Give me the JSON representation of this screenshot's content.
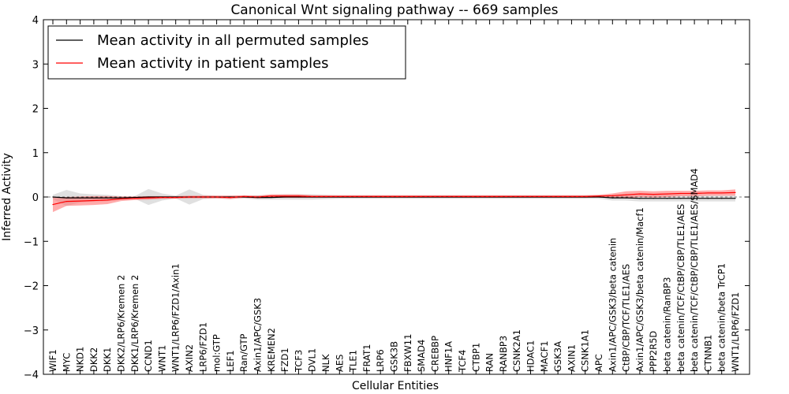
{
  "chart_data": {
    "type": "line",
    "title": "Canonical Wnt signaling pathway -- 669 samples",
    "xlabel": "Cellular Entities",
    "ylabel": "Inferred Activity",
    "ylim": [
      -4,
      4
    ],
    "yticks": [
      -4,
      -3,
      -2,
      -1,
      0,
      1,
      2,
      3,
      4
    ],
    "ytick_labels": [
      "−4",
      "−3",
      "−2",
      "−1",
      "0",
      "1",
      "2",
      "3",
      "4"
    ],
    "legend_position": "top-left",
    "categories": [
      "WIF1",
      "MYC",
      "NKD1",
      "DKK2",
      "DKK1",
      "DKK2/LRP6/Kremen 2",
      "DKK1/LRP6/Kremen 2",
      "CCND1",
      "WNT1",
      "WNT1/LRP6/FZD1/Axin1",
      "AXIN2",
      "LRP6/FZD1",
      "mol:GTP",
      "LEF1",
      "Ran/GTP",
      "Axin1/APC/GSK3",
      "KREMEN2",
      "FZD1",
      "TCF3",
      "DVL1",
      "NLK",
      "AES",
      "TLE1",
      "FRAT1",
      "LRP6",
      "GSK3B",
      "FBXW11",
      "SMAD4",
      "CREBBP",
      "HNF1A",
      "TCF4",
      "CTBP1",
      "RAN",
      "RANBP3",
      "CSNK2A1",
      "HDAC1",
      "MACF1",
      "GSK3A",
      "AXIN1",
      "CSNK1A1",
      "APC",
      "Axin1/APC/GSK3/beta catenin",
      "CtBP/CBP/TCF/TLE1/AES",
      "Axin1/APC/GSK3/beta catenin/Macf1",
      "PPP2R5D",
      "beta catenin/RanBP3",
      "beta catenin/TCF/CtBP/CBP/TLE1/AES",
      "beta catenin/TCF/CtBP/CBP/TLE1/AES/SMAD4",
      "CTNNB1",
      "beta catenin/beta TrCP1",
      "WNT1/LRP6/FZD1"
    ],
    "series": [
      {
        "name": "Mean activity in all permuted samples",
        "color": "#000000",
        "band_color": "#bbbbbb",
        "values": [
          0.0,
          -0.02,
          -0.02,
          -0.02,
          -0.02,
          -0.02,
          -0.01,
          0.0,
          0.0,
          0.0,
          0.0,
          0.0,
          0.0,
          0.0,
          0.0,
          -0.01,
          -0.01,
          0.0,
          0.0,
          0.0,
          0.0,
          0.0,
          0.0,
          0.0,
          0.0,
          0.0,
          0.0,
          0.0,
          0.0,
          0.0,
          0.0,
          0.0,
          0.0,
          0.0,
          0.0,
          0.0,
          0.0,
          0.0,
          0.0,
          0.0,
          0.0,
          -0.02,
          -0.02,
          -0.03,
          -0.03,
          -0.03,
          -0.03,
          -0.03,
          -0.03,
          -0.03,
          -0.03
        ],
        "band_half_width": [
          0.05,
          0.18,
          0.1,
          0.08,
          0.07,
          0.04,
          0.03,
          0.18,
          0.08,
          0.03,
          0.17,
          0.05,
          0.03,
          0.03,
          0.03,
          0.05,
          0.05,
          0.06,
          0.06,
          0.06,
          0.05,
          0.04,
          0.04,
          0.04,
          0.04,
          0.04,
          0.04,
          0.04,
          0.04,
          0.04,
          0.04,
          0.04,
          0.04,
          0.04,
          0.04,
          0.04,
          0.04,
          0.04,
          0.04,
          0.04,
          0.04,
          0.06,
          0.06,
          0.07,
          0.07,
          0.07,
          0.07,
          0.07,
          0.07,
          0.07,
          0.07
        ]
      },
      {
        "name": "Mean activity in patient samples",
        "color": "#ff0000",
        "band_color": "#ff6666",
        "values": [
          -0.17,
          -0.1,
          -0.09,
          -0.08,
          -0.07,
          -0.04,
          -0.03,
          -0.02,
          -0.01,
          -0.01,
          0.0,
          0.0,
          0.0,
          -0.01,
          0.01,
          0.0,
          0.02,
          0.02,
          0.02,
          0.01,
          0.01,
          0.01,
          0.01,
          0.01,
          0.01,
          0.01,
          0.01,
          0.01,
          0.01,
          0.01,
          0.01,
          0.01,
          0.01,
          0.01,
          0.01,
          0.01,
          0.01,
          0.01,
          0.01,
          0.01,
          0.02,
          0.03,
          0.05,
          0.07,
          0.06,
          0.07,
          0.08,
          0.08,
          0.09,
          0.09,
          0.1
        ],
        "band_half_width": [
          0.17,
          0.1,
          0.1,
          0.1,
          0.09,
          0.05,
          0.04,
          0.04,
          0.03,
          0.03,
          0.03,
          0.03,
          0.03,
          0.04,
          0.03,
          0.03,
          0.04,
          0.04,
          0.04,
          0.03,
          0.03,
          0.03,
          0.03,
          0.03,
          0.03,
          0.03,
          0.03,
          0.03,
          0.03,
          0.03,
          0.03,
          0.03,
          0.03,
          0.03,
          0.03,
          0.03,
          0.03,
          0.03,
          0.03,
          0.03,
          0.03,
          0.05,
          0.08,
          0.07,
          0.07,
          0.07,
          0.06,
          0.06,
          0.06,
          0.06,
          0.07
        ]
      }
    ]
  }
}
